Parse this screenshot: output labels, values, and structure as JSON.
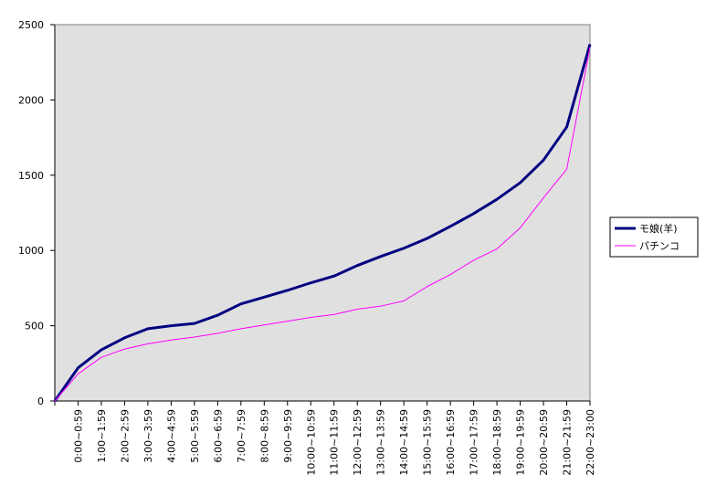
{
  "chart_data": {
    "type": "line",
    "categories": [
      null,
      "0:00~0:59",
      "1:00~1:59",
      "2:00~2:59",
      "3:00~3:59",
      "4:00~4:59",
      "5:00~5:59",
      "6:00~6:59",
      "7:00~7:59",
      "8:00~8:59",
      "9:00~9:59",
      "10:00~10:59",
      "11:00~11:59",
      "12:00~12:59",
      "13:00~13:59",
      "14:00~14:59",
      "15:00~15:59",
      "16:00~16:59",
      "17:00~17:59",
      "18:00~18:59",
      "19:00~19:59",
      "20:00~20:59",
      "21:00~21:59",
      "22:00~23:00"
    ],
    "series": [
      {
        "name": "モ娘(羊)",
        "color": "#000080",
        "width": 3,
        "values": [
          0,
          220,
          340,
          420,
          480,
          500,
          515,
          570,
          645,
          690,
          735,
          785,
          830,
          900,
          960,
          1015,
          1080,
          1160,
          1245,
          1340,
          1450,
          1600,
          1820,
          2370
        ]
      },
      {
        "name": "パチンコ",
        "color": "#ff00ff",
        "width": 1,
        "values": [
          0,
          180,
          290,
          345,
          380,
          405,
          425,
          450,
          480,
          505,
          530,
          555,
          575,
          610,
          630,
          665,
          760,
          840,
          935,
          1010,
          1150,
          1350,
          1540,
          2350
        ]
      }
    ],
    "ylim": [
      0,
      2500
    ],
    "yticks": [
      0,
      500,
      1000,
      1500,
      2000,
      2500
    ],
    "grid": false,
    "legend": "right",
    "background": "#e0e0e0"
  }
}
